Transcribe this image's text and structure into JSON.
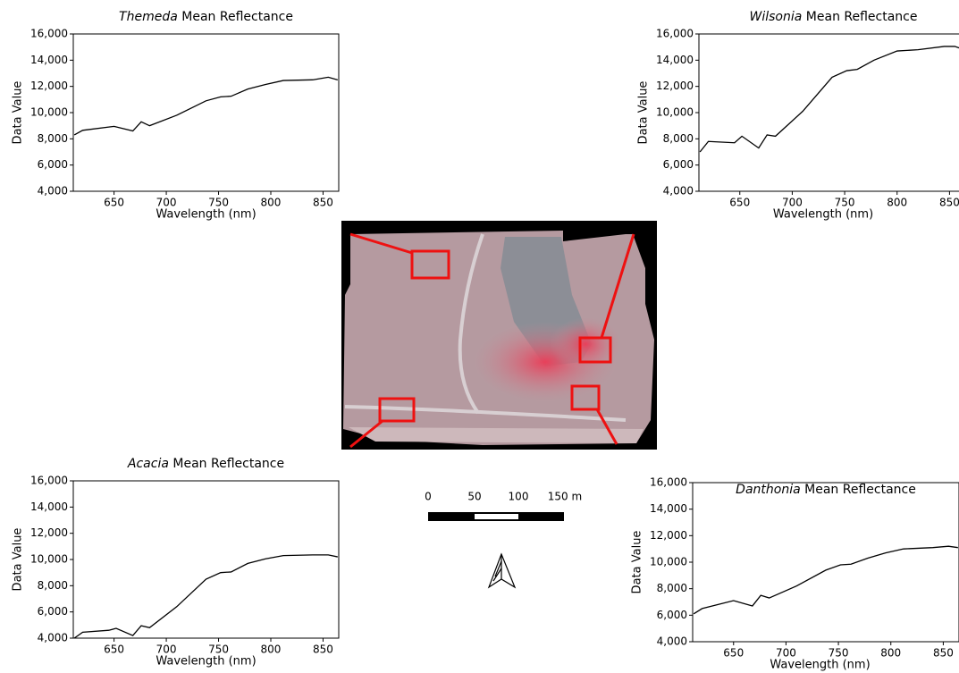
{
  "chart_data": [
    {
      "type": "line",
      "title": "Themeda Mean Reflectance",
      "x_label": "Wavelength (nm)",
      "y_label": "Data Value",
      "x": [
        612,
        620,
        650,
        668,
        676,
        684,
        710,
        738,
        752,
        762,
        778,
        795,
        812,
        840,
        855,
        864
      ],
      "series": [
        {
          "color": "#000000",
          "values": [
            8300,
            8650,
            8950,
            8600,
            9300,
            9000,
            9800,
            10900,
            11200,
            11250,
            11800,
            12150,
            12450,
            12500,
            12700,
            12500
          ]
        }
      ],
      "xlim": [
        611,
        865
      ],
      "xticks": [
        650,
        700,
        750,
        800,
        850
      ],
      "ylim": [
        4000,
        16000
      ],
      "yticks": [
        {
          "value": 4000,
          "label": "4,000"
        },
        {
          "value": 6000,
          "label": "6,000"
        },
        {
          "value": 8000,
          "label": "8,000"
        },
        {
          "value": 10000,
          "label": "10,000"
        },
        {
          "value": 12000,
          "label": "12,000"
        },
        {
          "value": 14000,
          "label": "14,000"
        },
        {
          "value": 16000,
          "label": "16,000"
        }
      ]
    },
    {
      "type": "line",
      "title": "Wilsonia Mean Reflectance",
      "x_label": "Wavelength (nm)",
      "y_label": "Data Value",
      "x": [
        612,
        620,
        645,
        652,
        668,
        676,
        684,
        710,
        738,
        752,
        762,
        778,
        800,
        820,
        845,
        855,
        864
      ],
      "series": [
        {
          "color": "#000000",
          "values": [
            7000,
            7800,
            7700,
            8200,
            7300,
            8300,
            8200,
            10100,
            12700,
            13200,
            13300,
            14000,
            14700,
            14800,
            15050,
            15050,
            14800
          ]
        }
      ],
      "xlim": [
        611,
        865
      ],
      "xticks": [
        650,
        700,
        750,
        800,
        850
      ],
      "ylim": [
        4000,
        16000
      ],
      "yticks": [
        {
          "value": 4000,
          "label": "4,000"
        },
        {
          "value": 6000,
          "label": "6,000"
        },
        {
          "value": 8000,
          "label": "8,000"
        },
        {
          "value": 10000,
          "label": "10,000"
        },
        {
          "value": 12000,
          "label": "12,000"
        },
        {
          "value": 14000,
          "label": "14,000"
        },
        {
          "value": 16000,
          "label": "16,000"
        }
      ]
    },
    {
      "type": "line",
      "title": "Acacia Mean Reflectance",
      "x_label": "Wavelength (nm)",
      "y_label": "Data Value",
      "x": [
        612,
        620,
        645,
        652,
        668,
        676,
        684,
        710,
        738,
        752,
        762,
        778,
        795,
        812,
        840,
        855,
        864
      ],
      "series": [
        {
          "color": "#000000",
          "values": [
            4000,
            4450,
            4600,
            4750,
            4200,
            4950,
            4800,
            6400,
            8500,
            9000,
            9050,
            9700,
            10050,
            10300,
            10350,
            10350,
            10200
          ]
        }
      ],
      "xlim": [
        611,
        865
      ],
      "xticks": [
        650,
        700,
        750,
        800,
        850
      ],
      "ylim": [
        4000,
        16000
      ],
      "yticks": [
        {
          "value": 4000,
          "label": "4,000"
        },
        {
          "value": 6000,
          "label": "6,000"
        },
        {
          "value": 8000,
          "label": "8,000"
        },
        {
          "value": 10000,
          "label": "10,000"
        },
        {
          "value": 12000,
          "label": "12,000"
        },
        {
          "value": 14000,
          "label": "14,000"
        },
        {
          "value": 16000,
          "label": "16,000"
        }
      ]
    },
    {
      "type": "line",
      "title": "Danthonia Mean Reflectance",
      "x_label": "Wavelength (nm)",
      "y_label": "Data Value",
      "x": [
        612,
        620,
        650,
        668,
        676,
        684,
        710,
        738,
        752,
        762,
        778,
        795,
        812,
        840,
        855,
        864
      ],
      "series": [
        {
          "color": "#000000",
          "values": [
            6100,
            6500,
            7100,
            6700,
            7500,
            7300,
            8200,
            9400,
            9800,
            9850,
            10300,
            10700,
            11000,
            11100,
            11200,
            11100
          ]
        }
      ],
      "xlim": [
        611,
        865
      ],
      "xticks": [
        650,
        700,
        750,
        800,
        850
      ],
      "ylim": [
        4000,
        16000
      ],
      "yticks": [
        {
          "value": 4000,
          "label": "4,000"
        },
        {
          "value": 6000,
          "label": "6,000"
        },
        {
          "value": 8000,
          "label": "8,000"
        },
        {
          "value": 10000,
          "label": "10,000"
        },
        {
          "value": 12000,
          "label": "12,000"
        },
        {
          "value": 14000,
          "label": "14,000"
        },
        {
          "value": 16000,
          "label": "16,000"
        }
      ]
    }
  ],
  "map": {
    "scale_labels": [
      "0",
      "50",
      "100",
      "150 m"
    ]
  }
}
